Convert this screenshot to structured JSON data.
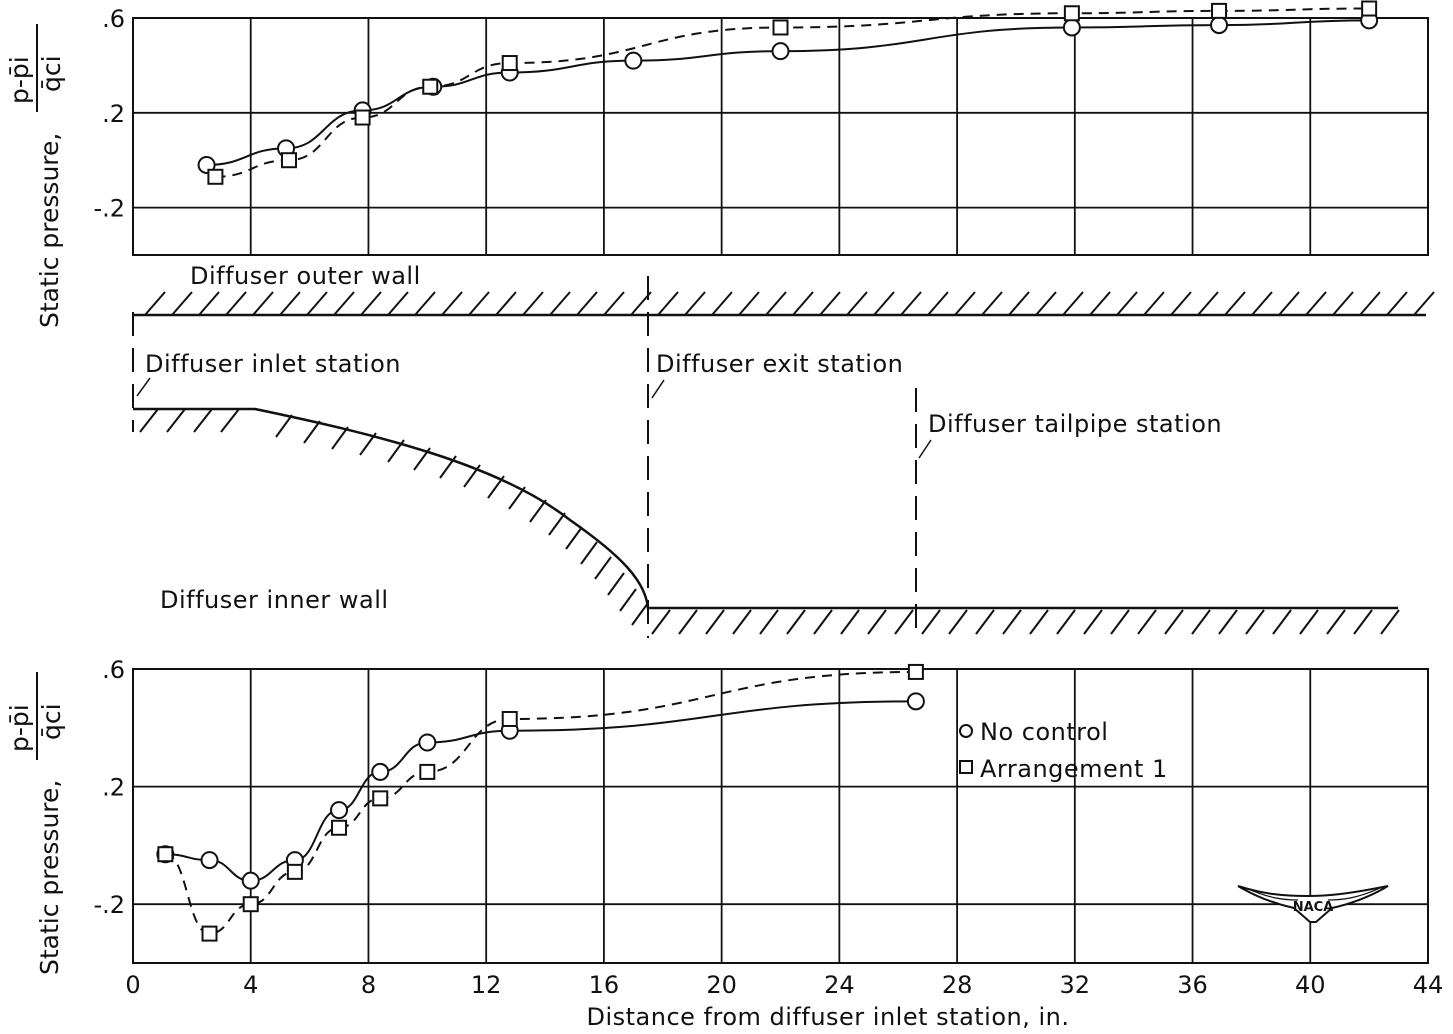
{
  "chart_data": [
    {
      "type": "line",
      "panel": "outer wall",
      "ylabel_main": "Static pressure,",
      "ylabel_numerator": "p-p̄i",
      "ylabel_denominator": "q̄ci",
      "ylim": [
        -0.4,
        0.6
      ],
      "y_ticks": [
        0.6,
        0.2,
        -0.2
      ],
      "y_tick_labels": [
        ".6",
        ".2",
        "-.2"
      ],
      "xlim": [
        0,
        44
      ],
      "grid": true,
      "series": [
        {
          "marker": "circle",
          "line": "solid",
          "x": [
            2.5,
            5.2,
            7.8,
            10.2,
            12.8,
            17.0,
            22.0,
            31.9,
            36.9,
            42.0
          ],
          "y": [
            -0.02,
            0.05,
            0.21,
            0.31,
            0.37,
            0.42,
            0.46,
            0.56,
            0.57,
            0.59
          ]
        },
        {
          "marker": "square",
          "line": "dashed",
          "x": [
            2.8,
            5.3,
            7.8,
            10.1,
            12.8,
            22.0,
            31.9,
            36.9,
            42.0
          ],
          "y": [
            -0.07,
            0.0,
            0.18,
            0.31,
            0.41,
            0.56,
            0.62,
            0.63,
            0.64
          ]
        }
      ]
    },
    {
      "type": "line",
      "panel": "inner wall",
      "ylabel_main": "Static pressure,",
      "ylabel_numerator": "p-p̄i",
      "ylabel_denominator": "q̄ci",
      "ylim": [
        -0.4,
        0.6
      ],
      "y_ticks": [
        0.6,
        0.2,
        -0.2
      ],
      "y_tick_labels": [
        ".6",
        ".2",
        "-.2"
      ],
      "xlim": [
        0,
        44
      ],
      "x_ticks": [
        0,
        4,
        8,
        12,
        16,
        20,
        24,
        28,
        32,
        36,
        40,
        44
      ],
      "x_tick_labels": [
        "0",
        "4",
        "8",
        "12",
        "16",
        "20",
        "24",
        "28",
        "32",
        "36",
        "40",
        "44"
      ],
      "xlabel": "Distance from diffuser inlet station, in.",
      "grid": true,
      "legend": [
        {
          "marker": "circle",
          "label": "No control"
        },
        {
          "marker": "square",
          "label": "Arrangement 1"
        }
      ],
      "legend_position": "upper-right",
      "series": [
        {
          "name": "No control",
          "marker": "circle",
          "line": "solid",
          "x": [
            1.1,
            2.6,
            4.0,
            5.5,
            7.0,
            8.4,
            10.0,
            12.8,
            26.6
          ],
          "y": [
            -0.03,
            -0.05,
            -0.12,
            -0.05,
            0.12,
            0.25,
            0.35,
            0.39,
            0.49
          ]
        },
        {
          "name": "Arrangement 1",
          "marker": "square",
          "line": "dashed",
          "x": [
            1.1,
            2.6,
            4.0,
            5.5,
            7.0,
            8.4,
            10.0,
            12.8,
            26.6
          ],
          "y": [
            -0.03,
            -0.3,
            -0.2,
            -0.09,
            0.06,
            0.16,
            0.25,
            0.43,
            0.59
          ]
        }
      ]
    }
  ],
  "diagram": {
    "outer_wall_label": "Diffuser outer wall",
    "inner_wall_label": "Diffuser inner wall",
    "inlet_station_label": "Diffuser inlet station",
    "exit_station_label": "Diffuser exit station",
    "tailpipe_station_label": "Diffuser tailpipe station"
  },
  "logo": {
    "text": "NACA"
  }
}
